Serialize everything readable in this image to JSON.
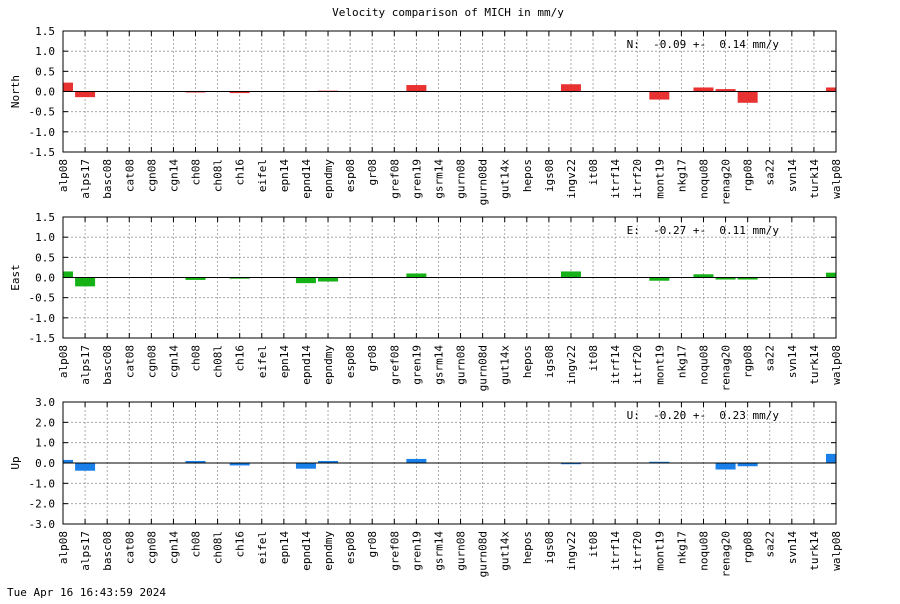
{
  "footer_timestamp": "Tue Apr 16 16:43:59 2024",
  "chart_data": {
    "type": "bar",
    "title": "Velocity comparison of MICH in mm/y",
    "categories": [
      "alp08",
      "alps17",
      "basc08",
      "cat08",
      "cgn08",
      "cgn14",
      "ch08",
      "ch08l",
      "ch16",
      "eifel",
      "epn14",
      "epnd14",
      "epndmy",
      "esp08",
      "gr08",
      "gref08",
      "gren19",
      "gsrm14",
      "gurn08",
      "gurn08d",
      "gut14x",
      "hepos",
      "igs08",
      "ingv22",
      "it08",
      "itrf14",
      "itrf20",
      "mont19",
      "nkg17",
      "noqu08",
      "renag20",
      "rgp08",
      "sa22",
      "svn14",
      "turk14",
      "walp08"
    ],
    "grid": true,
    "panels": [
      {
        "ylabel": "North",
        "ylim": [
          -1.5,
          1.5
        ],
        "yticks": [
          "1.5",
          "1.0",
          "0.5",
          "0.0",
          "-0.5",
          "-1.0",
          "-1.5"
        ],
        "ytick_values": [
          1.5,
          1.0,
          0.5,
          0.0,
          -0.5,
          -1.0,
          -1.5
        ],
        "color": "#e83232",
        "stat_label": "N:  -0.09 +-  0.14 mm/y",
        "values": [
          0.22,
          -0.14,
          0,
          0,
          0,
          0,
          -0.02,
          0,
          -0.04,
          0,
          0,
          0,
          0.02,
          0,
          0,
          0,
          0.16,
          0,
          0,
          0,
          0,
          0,
          0,
          0.18,
          0,
          0,
          0,
          -0.2,
          0,
          0.1,
          0.06,
          -0.28,
          0,
          0,
          0,
          0.1
        ]
      },
      {
        "ylabel": "East",
        "ylim": [
          -1.5,
          1.5
        ],
        "yticks": [
          "1.5",
          "1.0",
          "0.5",
          "0.0",
          "-0.5",
          "-1.0",
          "-1.5"
        ],
        "ytick_values": [
          1.5,
          1.0,
          0.5,
          0.0,
          -0.5,
          -1.0,
          -1.5
        ],
        "color": "#16b116",
        "stat_label": "E:  -0.27 +-  0.11 mm/y",
        "values": [
          0.15,
          -0.22,
          0,
          0,
          0,
          0,
          -0.06,
          0,
          -0.03,
          0,
          0,
          -0.14,
          -0.1,
          0,
          0,
          0,
          0.1,
          0,
          0,
          0,
          0,
          0,
          0,
          0.15,
          0,
          0,
          0,
          -0.08,
          0,
          0.08,
          -0.05,
          -0.05,
          0,
          0,
          0,
          0.12
        ]
      },
      {
        "ylabel": "Up",
        "ylim": [
          -3.0,
          3.0
        ],
        "yticks": [
          "3.0",
          "2.0",
          "1.0",
          "0.0",
          "-1.0",
          "-2.0",
          "-3.0"
        ],
        "ytick_values": [
          3.0,
          2.0,
          1.0,
          0.0,
          -1.0,
          -2.0,
          -3.0
        ],
        "color": "#1980ea",
        "stat_label": "U:  -0.20 +-  0.23 mm/y",
        "values": [
          0.15,
          -0.38,
          0,
          0,
          0,
          0,
          0.1,
          0,
          -0.12,
          0,
          0,
          -0.28,
          0.1,
          0,
          0,
          0,
          0.2,
          0,
          0,
          0,
          0,
          0,
          0,
          -0.06,
          0,
          0,
          0,
          0.06,
          0,
          0,
          -0.32,
          -0.16,
          0,
          0,
          0,
          0.45
        ]
      }
    ]
  }
}
